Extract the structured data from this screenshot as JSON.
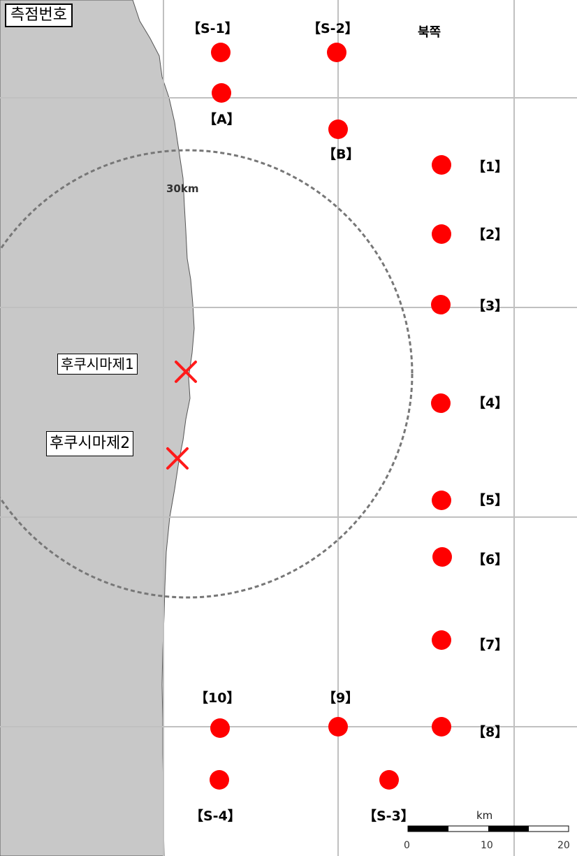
{
  "map": {
    "title": "측점번호",
    "north_label": "북쪽",
    "radius_label": "30km",
    "colors": {
      "land": "#c8c8c8",
      "sea": "#ffffff",
      "station": "#ff0000",
      "grid": "#c0c0c0",
      "ring": "#777777"
    },
    "plants": [
      {
        "id": "plant-1",
        "label": "후쿠시마제1"
      },
      {
        "id": "plant-2",
        "label": "후쿠시마제2"
      }
    ],
    "stations": [
      {
        "id": "s-1",
        "label": "【S-1】"
      },
      {
        "id": "s-2",
        "label": "【S-2】"
      },
      {
        "id": "a",
        "label": "【A】"
      },
      {
        "id": "b",
        "label": "【B】"
      },
      {
        "id": "1",
        "label": "【1】"
      },
      {
        "id": "2",
        "label": "【2】"
      },
      {
        "id": "3",
        "label": "【3】"
      },
      {
        "id": "4",
        "label": "【4】"
      },
      {
        "id": "5",
        "label": "【5】"
      },
      {
        "id": "6",
        "label": "【6】"
      },
      {
        "id": "7",
        "label": "【7】"
      },
      {
        "id": "8",
        "label": "【8】"
      },
      {
        "id": "9",
        "label": "【9】"
      },
      {
        "id": "10",
        "label": "【10】"
      },
      {
        "id": "s-3",
        "label": "【S-3】"
      },
      {
        "id": "s-4",
        "label": "【S-4】"
      }
    ],
    "scale_bar": {
      "unit": "km",
      "ticks": [
        "0",
        "10",
        "20"
      ]
    }
  }
}
